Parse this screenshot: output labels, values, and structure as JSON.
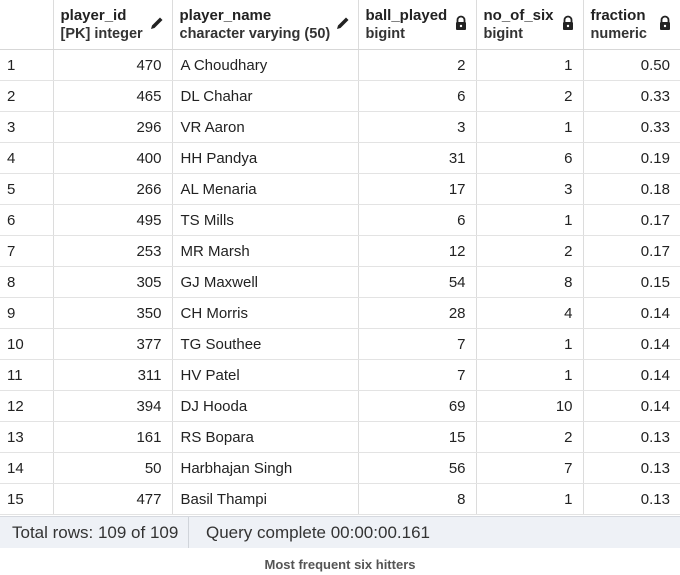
{
  "columns": [
    {
      "name": "player_id",
      "type": "[PK] integer",
      "icon": "pencil-icon"
    },
    {
      "name": "player_name",
      "type": "character varying (50)",
      "icon": "pencil-icon"
    },
    {
      "name": "ball_played",
      "type": "bigint",
      "icon": "lock-icon"
    },
    {
      "name": "no_of_six",
      "type": "bigint",
      "icon": "lock-icon"
    },
    {
      "name": "fraction",
      "type": "numeric",
      "icon": "lock-icon"
    }
  ],
  "rows": [
    {
      "n": "1",
      "player_id": "470",
      "player_name": "A Choudhary",
      "ball_played": "2",
      "no_of_six": "1",
      "fraction": "0.50"
    },
    {
      "n": "2",
      "player_id": "465",
      "player_name": "DL Chahar",
      "ball_played": "6",
      "no_of_six": "2",
      "fraction": "0.33"
    },
    {
      "n": "3",
      "player_id": "296",
      "player_name": "VR Aaron",
      "ball_played": "3",
      "no_of_six": "1",
      "fraction": "0.33"
    },
    {
      "n": "4",
      "player_id": "400",
      "player_name": "HH Pandya",
      "ball_played": "31",
      "no_of_six": "6",
      "fraction": "0.19"
    },
    {
      "n": "5",
      "player_id": "266",
      "player_name": "AL Menaria",
      "ball_played": "17",
      "no_of_six": "3",
      "fraction": "0.18"
    },
    {
      "n": "6",
      "player_id": "495",
      "player_name": "TS Mills",
      "ball_played": "6",
      "no_of_six": "1",
      "fraction": "0.17"
    },
    {
      "n": "7",
      "player_id": "253",
      "player_name": "MR Marsh",
      "ball_played": "12",
      "no_of_six": "2",
      "fraction": "0.17"
    },
    {
      "n": "8",
      "player_id": "305",
      "player_name": "GJ Maxwell",
      "ball_played": "54",
      "no_of_six": "8",
      "fraction": "0.15"
    },
    {
      "n": "9",
      "player_id": "350",
      "player_name": "CH Morris",
      "ball_played": "28",
      "no_of_six": "4",
      "fraction": "0.14"
    },
    {
      "n": "10",
      "player_id": "377",
      "player_name": "TG Southee",
      "ball_played": "7",
      "no_of_six": "1",
      "fraction": "0.14"
    },
    {
      "n": "11",
      "player_id": "311",
      "player_name": "HV Patel",
      "ball_played": "7",
      "no_of_six": "1",
      "fraction": "0.14"
    },
    {
      "n": "12",
      "player_id": "394",
      "player_name": "DJ Hooda",
      "ball_played": "69",
      "no_of_six": "10",
      "fraction": "0.14"
    },
    {
      "n": "13",
      "player_id": "161",
      "player_name": "RS Bopara",
      "ball_played": "15",
      "no_of_six": "2",
      "fraction": "0.13"
    },
    {
      "n": "14",
      "player_id": "50",
      "player_name": "Harbhajan Singh",
      "ball_played": "56",
      "no_of_six": "7",
      "fraction": "0.13"
    },
    {
      "n": "15",
      "player_id": "477",
      "player_name": "Basil Thampi",
      "ball_played": "8",
      "no_of_six": "1",
      "fraction": "0.13"
    }
  ],
  "status": {
    "total_rows": "Total rows: 109 of 109",
    "query": "Query complete 00:00:00.161"
  },
  "caption": "Most frequent six hitters"
}
